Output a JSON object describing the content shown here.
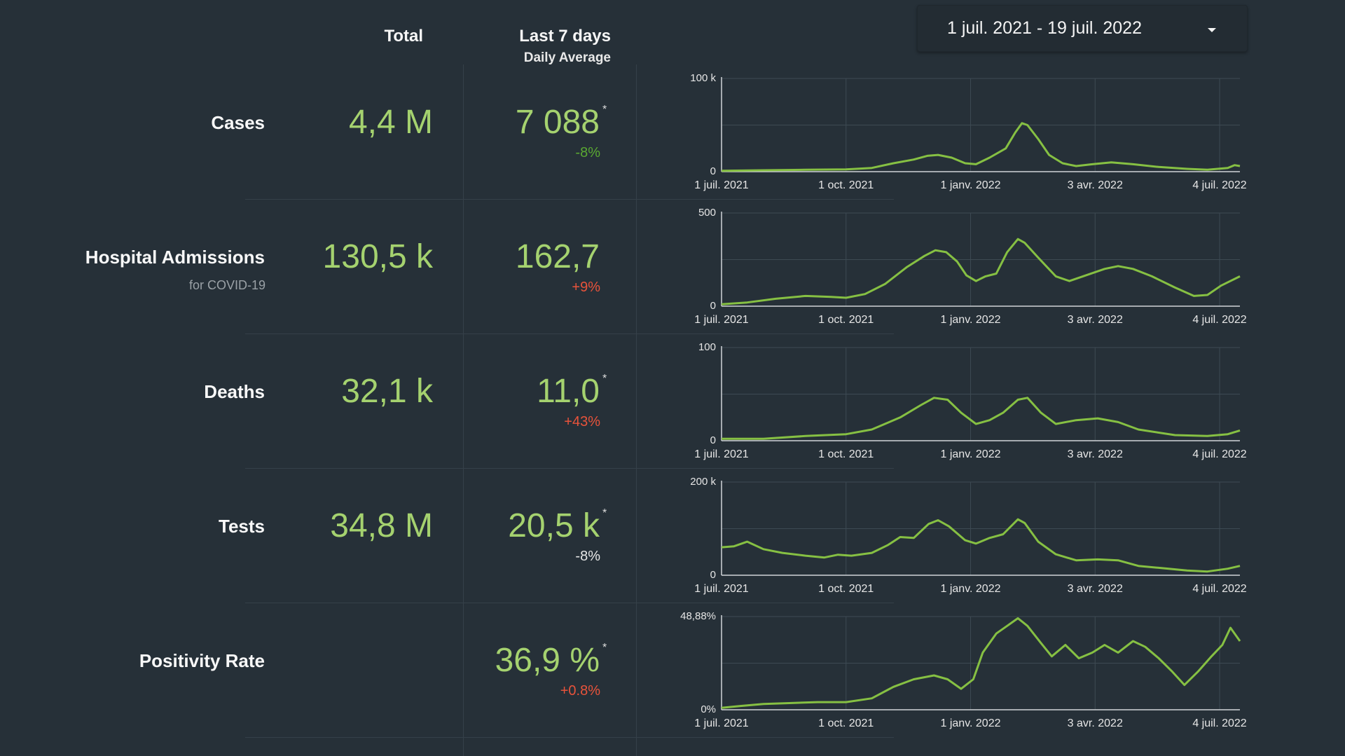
{
  "date_range": {
    "label": "1 juil. 2021 - 19 juil. 2022"
  },
  "headers": {
    "total": "Total",
    "last7": "Last 7 days",
    "daily_avg": "Daily Average"
  },
  "colors": {
    "background": "#263038",
    "value_green": "#a5d26f",
    "line_green": "#86c043",
    "pct_up_red": "#e8533b",
    "pct_down_green": "#5aa832"
  },
  "rows": [
    {
      "label": "Cases",
      "sub": "",
      "total": "4,4 M",
      "last7": "7 088",
      "star": "*",
      "pct": "-8%",
      "pct_tone": "good"
    },
    {
      "label": "Hospital Admissions",
      "sub": "for COVID-19",
      "total": "130,5 k",
      "last7": "162,7",
      "star": "",
      "pct": "+9%",
      "pct_tone": "bad"
    },
    {
      "label": "Deaths",
      "sub": "",
      "total": "32,1 k",
      "last7": "11,0",
      "star": "*",
      "pct": "+43%",
      "pct_tone": "bad"
    },
    {
      "label": "Tests",
      "sub": "",
      "total": "34,8 M",
      "last7": "20,5 k",
      "star": "*",
      "pct": "-8%",
      "pct_tone": "neutral"
    },
    {
      "label": "Positivity Rate",
      "sub": "",
      "total": "",
      "last7": "36,9 %",
      "star": "*",
      "pct": "+0.8%",
      "pct_tone": "bad"
    }
  ],
  "chart_data": [
    {
      "type": "line",
      "series_id": "cases",
      "ylim": [
        0,
        100000
      ],
      "y_tick_labels": [
        "100 k",
        "0"
      ],
      "x_tick_labels": [
        "1 juil. 2021",
        "1 oct. 2021",
        "1 janv. 2022",
        "3 avr. 2022",
        "4 juil. 2022"
      ],
      "x_tick_dates": [
        "2021-07-01",
        "2021-10-01",
        "2022-01-01",
        "2022-04-03",
        "2022-07-04"
      ],
      "x_range": [
        "2021-07-01",
        "2022-07-19"
      ],
      "points": [
        [
          "2021-07-01",
          1000
        ],
        [
          "2021-08-01",
          1500
        ],
        [
          "2021-09-01",
          2000
        ],
        [
          "2021-10-01",
          2500
        ],
        [
          "2021-10-20",
          4000
        ],
        [
          "2021-11-05",
          9000
        ],
        [
          "2021-11-20",
          13000
        ],
        [
          "2021-11-30",
          17000
        ],
        [
          "2021-12-08",
          18000
        ],
        [
          "2021-12-18",
          15000
        ],
        [
          "2021-12-28",
          9000
        ],
        [
          "2022-01-05",
          8000
        ],
        [
          "2022-01-15",
          15000
        ],
        [
          "2022-01-27",
          25000
        ],
        [
          "2022-02-03",
          42000
        ],
        [
          "2022-02-08",
          52000
        ],
        [
          "2022-02-12",
          50000
        ],
        [
          "2022-02-20",
          35000
        ],
        [
          "2022-02-28",
          18000
        ],
        [
          "2022-03-10",
          9000
        ],
        [
          "2022-03-20",
          6000
        ],
        [
          "2022-04-01",
          8000
        ],
        [
          "2022-04-15",
          10000
        ],
        [
          "2022-05-01",
          8000
        ],
        [
          "2022-05-20",
          5000
        ],
        [
          "2022-06-10",
          3000
        ],
        [
          "2022-06-25",
          2000
        ],
        [
          "2022-07-10",
          4000
        ],
        [
          "2022-07-15",
          7000
        ],
        [
          "2022-07-19",
          6000
        ]
      ]
    },
    {
      "type": "line",
      "series_id": "hospital_admissions",
      "ylim": [
        0,
        500
      ],
      "y_tick_labels": [
        "500",
        "0"
      ],
      "x_tick_labels": [
        "1 juil. 2021",
        "1 oct. 2021",
        "1 janv. 2022",
        "3 avr. 2022",
        "4 juil. 2022"
      ],
      "x_tick_dates": [
        "2021-07-01",
        "2021-10-01",
        "2022-01-01",
        "2022-04-03",
        "2022-07-04"
      ],
      "x_range": [
        "2021-07-01",
        "2022-07-19"
      ],
      "points": [
        [
          "2021-07-01",
          10
        ],
        [
          "2021-07-20",
          20
        ],
        [
          "2021-08-10",
          40
        ],
        [
          "2021-09-01",
          55
        ],
        [
          "2021-09-20",
          50
        ],
        [
          "2021-10-01",
          45
        ],
        [
          "2021-10-15",
          65
        ],
        [
          "2021-10-30",
          120
        ],
        [
          "2021-11-15",
          210
        ],
        [
          "2021-11-28",
          270
        ],
        [
          "2021-12-06",
          300
        ],
        [
          "2021-12-14",
          290
        ],
        [
          "2021-12-22",
          240
        ],
        [
          "2021-12-29",
          165
        ],
        [
          "2022-01-05",
          135
        ],
        [
          "2022-01-12",
          160
        ],
        [
          "2022-01-20",
          175
        ],
        [
          "2022-01-28",
          290
        ],
        [
          "2022-02-05",
          360
        ],
        [
          "2022-02-10",
          340
        ],
        [
          "2022-02-20",
          260
        ],
        [
          "2022-03-05",
          160
        ],
        [
          "2022-03-15",
          135
        ],
        [
          "2022-03-25",
          160
        ],
        [
          "2022-04-10",
          200
        ],
        [
          "2022-04-20",
          215
        ],
        [
          "2022-05-01",
          200
        ],
        [
          "2022-05-15",
          160
        ],
        [
          "2022-06-01",
          100
        ],
        [
          "2022-06-15",
          55
        ],
        [
          "2022-06-25",
          60
        ],
        [
          "2022-07-05",
          110
        ],
        [
          "2022-07-19",
          160
        ]
      ]
    },
    {
      "type": "line",
      "series_id": "deaths",
      "ylim": [
        0,
        100
      ],
      "y_tick_labels": [
        "100",
        "0"
      ],
      "x_tick_labels": [
        "1 juil. 2021",
        "1 oct. 2021",
        "1 janv. 2022",
        "3 avr. 2022",
        "4 juil. 2022"
      ],
      "x_tick_dates": [
        "2021-07-01",
        "2021-10-01",
        "2022-01-01",
        "2022-04-03",
        "2022-07-04"
      ],
      "x_range": [
        "2021-07-01",
        "2022-07-19"
      ],
      "points": [
        [
          "2021-07-01",
          2
        ],
        [
          "2021-08-01",
          2
        ],
        [
          "2021-09-01",
          5
        ],
        [
          "2021-10-01",
          7
        ],
        [
          "2021-10-20",
          12
        ],
        [
          "2021-11-10",
          25
        ],
        [
          "2021-11-25",
          38
        ],
        [
          "2021-12-05",
          46
        ],
        [
          "2021-12-15",
          44
        ],
        [
          "2021-12-25",
          30
        ],
        [
          "2022-01-05",
          18
        ],
        [
          "2022-01-15",
          22
        ],
        [
          "2022-01-25",
          30
        ],
        [
          "2022-02-05",
          44
        ],
        [
          "2022-02-12",
          46
        ],
        [
          "2022-02-22",
          30
        ],
        [
          "2022-03-05",
          18
        ],
        [
          "2022-03-20",
          22
        ],
        [
          "2022-04-05",
          24
        ],
        [
          "2022-04-20",
          20
        ],
        [
          "2022-05-05",
          12
        ],
        [
          "2022-06-01",
          6
        ],
        [
          "2022-06-25",
          5
        ],
        [
          "2022-07-10",
          7
        ],
        [
          "2022-07-19",
          11
        ]
      ]
    },
    {
      "type": "line",
      "series_id": "tests",
      "ylim": [
        0,
        200000
      ],
      "y_tick_labels": [
        "200 k",
        "0"
      ],
      "x_tick_labels": [
        "1 juil. 2021",
        "1 oct. 2021",
        "1 janv. 2022",
        "3 avr. 2022",
        "4 juil. 2022"
      ],
      "x_tick_dates": [
        "2021-07-01",
        "2021-10-01",
        "2022-01-01",
        "2022-04-03",
        "2022-07-04"
      ],
      "x_range": [
        "2021-07-01",
        "2022-07-19"
      ],
      "points": [
        [
          "2021-07-01",
          60000
        ],
        [
          "2021-07-10",
          62000
        ],
        [
          "2021-07-20",
          72000
        ],
        [
          "2021-08-01",
          56000
        ],
        [
          "2021-08-15",
          48000
        ],
        [
          "2021-09-01",
          42000
        ],
        [
          "2021-09-15",
          38000
        ],
        [
          "2021-09-25",
          44000
        ],
        [
          "2021-10-05",
          42000
        ],
        [
          "2021-10-20",
          48000
        ],
        [
          "2021-11-01",
          65000
        ],
        [
          "2021-11-10",
          82000
        ],
        [
          "2021-11-20",
          80000
        ],
        [
          "2021-12-01",
          110000
        ],
        [
          "2021-12-08",
          118000
        ],
        [
          "2021-12-16",
          105000
        ],
        [
          "2021-12-28",
          75000
        ],
        [
          "2022-01-05",
          68000
        ],
        [
          "2022-01-15",
          80000
        ],
        [
          "2022-01-25",
          88000
        ],
        [
          "2022-02-05",
          120000
        ],
        [
          "2022-02-10",
          112000
        ],
        [
          "2022-02-20",
          72000
        ],
        [
          "2022-03-05",
          45000
        ],
        [
          "2022-03-20",
          32000
        ],
        [
          "2022-04-05",
          34000
        ],
        [
          "2022-04-20",
          32000
        ],
        [
          "2022-05-05",
          20000
        ],
        [
          "2022-05-20",
          16000
        ],
        [
          "2022-06-10",
          10000
        ],
        [
          "2022-06-25",
          8000
        ],
        [
          "2022-07-10",
          14000
        ],
        [
          "2022-07-19",
          20000
        ]
      ]
    },
    {
      "type": "line",
      "series_id": "positivity_rate",
      "ylim": [
        0,
        48.88
      ],
      "y_tick_labels": [
        "48,88%",
        "0%"
      ],
      "x_tick_labels": [
        "1 juil. 2021",
        "1 oct. 2021",
        "1 janv. 2022",
        "3 avr. 2022",
        "4 juil. 2022"
      ],
      "x_tick_dates": [
        "2021-07-01",
        "2021-10-01",
        "2022-01-01",
        "2022-04-03",
        "2022-07-04"
      ],
      "x_range": [
        "2021-07-01",
        "2022-07-19"
      ],
      "points": [
        [
          "2021-07-01",
          1
        ],
        [
          "2021-07-15",
          2
        ],
        [
          "2021-08-01",
          3
        ],
        [
          "2021-08-20",
          3.5
        ],
        [
          "2021-09-10",
          4
        ],
        [
          "2021-10-01",
          4
        ],
        [
          "2021-10-20",
          6
        ],
        [
          "2021-11-05",
          12
        ],
        [
          "2021-11-20",
          16
        ],
        [
          "2021-12-05",
          18
        ],
        [
          "2021-12-15",
          16
        ],
        [
          "2021-12-25",
          11
        ],
        [
          "2022-01-03",
          16
        ],
        [
          "2022-01-10",
          30
        ],
        [
          "2022-01-20",
          40
        ],
        [
          "2022-01-28",
          44
        ],
        [
          "2022-02-05",
          48
        ],
        [
          "2022-02-12",
          44
        ],
        [
          "2022-02-22",
          35
        ],
        [
          "2022-03-02",
          28
        ],
        [
          "2022-03-12",
          34
        ],
        [
          "2022-03-22",
          27
        ],
        [
          "2022-04-01",
          30
        ],
        [
          "2022-04-10",
          34
        ],
        [
          "2022-04-20",
          30
        ],
        [
          "2022-05-01",
          36
        ],
        [
          "2022-05-10",
          33
        ],
        [
          "2022-05-20",
          27
        ],
        [
          "2022-05-30",
          20
        ],
        [
          "2022-06-08",
          13
        ],
        [
          "2022-06-18",
          20
        ],
        [
          "2022-06-28",
          28
        ],
        [
          "2022-07-06",
          34
        ],
        [
          "2022-07-12",
          43
        ],
        [
          "2022-07-19",
          36
        ]
      ]
    }
  ]
}
